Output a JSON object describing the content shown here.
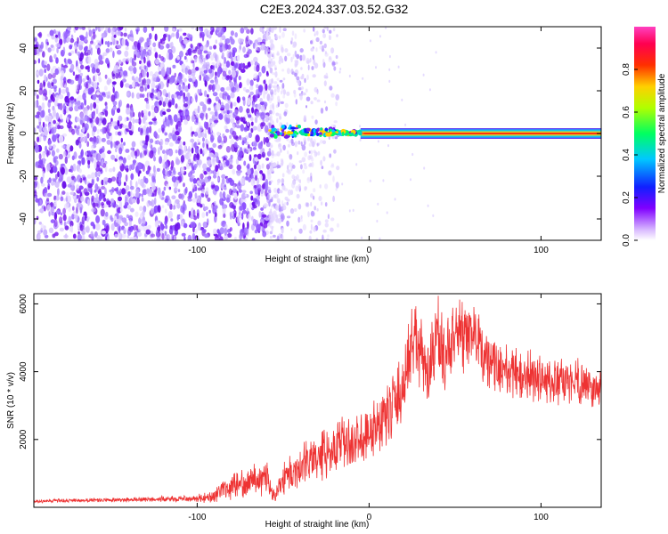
{
  "title": "C2E3.2024.337.03.52.G32",
  "colors": {
    "snr_line": "#ee3333",
    "spec_dots": "#7a1ef0",
    "frame": "#000000"
  },
  "chart_data": [
    {
      "type": "heatmap",
      "title": "C2E3.2024.337.03.52.G32",
      "xlabel": "Height of straight line (km)",
      "ylabel": "Frequency (Hz)",
      "xlim": [
        -195,
        135
      ],
      "ylim": [
        -50,
        50
      ],
      "x_ticks": [
        -100,
        0,
        100
      ],
      "x_tick_labels": [
        "-100",
        "0",
        "100"
      ],
      "y_ticks": [
        -40,
        -20,
        0,
        20,
        40
      ],
      "y_tick_labels": [
        "-40",
        "-20",
        "0",
        "20",
        "40"
      ],
      "colorbar": {
        "label": "Normalized spectral amplitude",
        "range": [
          0,
          1
        ],
        "ticks": [
          0,
          0.2,
          0.4,
          0.6,
          0.8
        ],
        "tick_labels": [
          "0.0",
          "0.2",
          "0.4",
          "0.6",
          "0.8"
        ],
        "colormap": [
          "#ffffff",
          "#8000ff",
          "#0000ff",
          "#00d0ff",
          "#00ff40",
          "#ffff00",
          "#ff0000",
          "#ff40c0"
        ]
      },
      "features": {
        "noise_region_x": [
          -195,
          -58
        ],
        "fading_noise_x": [
          -58,
          -18
        ],
        "carrier_start_x": -58,
        "carrier_freq_hz": 0,
        "carrier_band_hz": [
          -2.5,
          2.5
        ]
      },
      "grid": false
    },
    {
      "type": "line",
      "xlabel": "Height of straight line (km)",
      "ylabel": "SNR (10 * v/v)",
      "xlim": [
        -195,
        135
      ],
      "ylim": [
        0,
        6300
      ],
      "x_ticks": [
        -100,
        0,
        100
      ],
      "x_tick_labels": [
        "-100",
        "0",
        "100"
      ],
      "y_ticks": [
        2000,
        4000,
        6000
      ],
      "y_tick_labels": [
        "2000",
        "4000",
        "6000"
      ],
      "grid": false,
      "series": [
        {
          "color": "#ee3333",
          "envelope": {
            "x": [
              -195,
              -140,
              -100,
              -90,
              -80,
              -70,
              -60,
              -55,
              -50,
              -40,
              -30,
              -20,
              -10,
              0,
              10,
              20,
              25,
              30,
              35,
              40,
              45,
              50,
              55,
              60,
              65,
              70,
              80,
              90,
              100,
              110,
              120,
              130,
              135
            ],
            "y": [
              180,
              220,
              260,
              350,
              600,
              800,
              900,
              300,
              900,
              1200,
              1500,
              1800,
              1900,
              2200,
              2700,
              3500,
              5000,
              4500,
              3800,
              5200,
              4200,
              5400,
              4800,
              5200,
              4600,
              4300,
              4000,
              3900,
              3800,
              3600,
              3800,
              3500,
              3500
            ],
            "amp": [
              60,
              80,
              120,
              250,
              400,
              500,
              600,
              200,
              600,
              700,
              800,
              900,
              900,
              1000,
              1100,
              1200,
              1300,
              1400,
              1300,
              1400,
              1300,
              1300,
              1200,
              1200,
              1100,
              1000,
              900,
              900,
              900,
              800,
              800,
              700,
              700
            ]
          }
        }
      ]
    }
  ]
}
